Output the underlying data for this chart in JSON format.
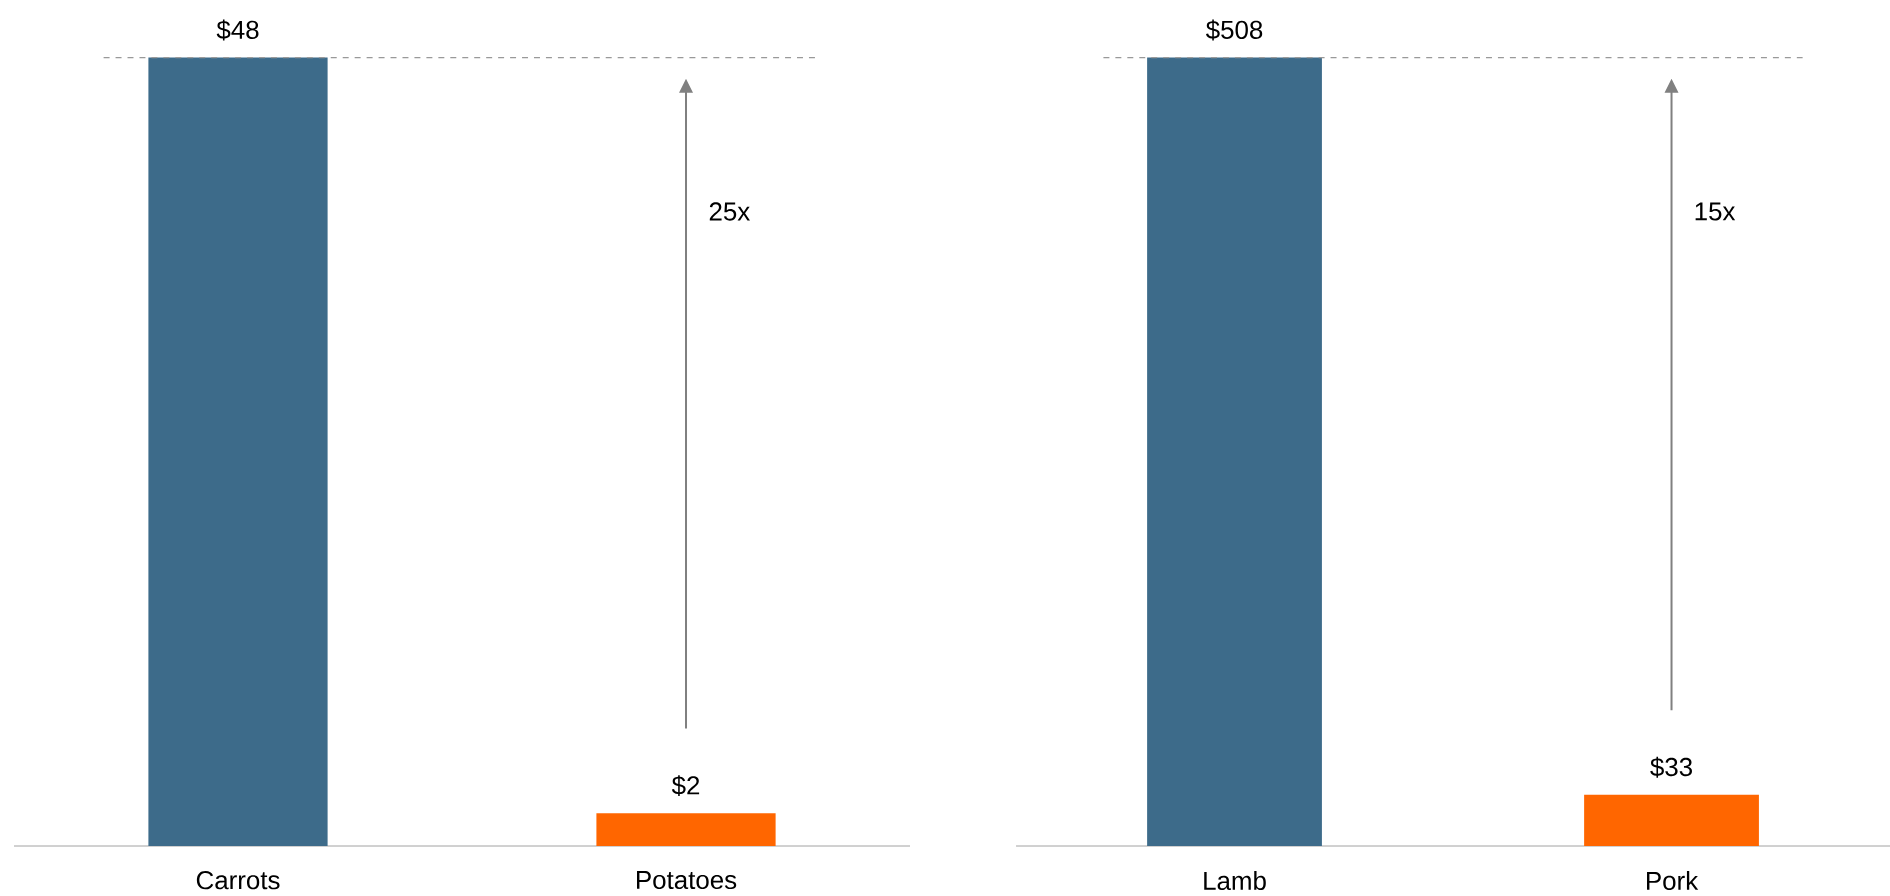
{
  "chart_data": [
    {
      "type": "bar",
      "categories": [
        "Carrots",
        "Potatoes"
      ],
      "values": [
        48,
        2
      ],
      "colors": [
        "#3d6b8a",
        "#ff6600"
      ],
      "value_labels": [
        "$48",
        "$2"
      ],
      "tick_labels": "x",
      "ref_lines": [
        {
          "axis": "y",
          "value": 48,
          "color": "#999999",
          "line_style": "dashed"
        }
      ],
      "annotations": [
        "25x"
      ]
    },
    {
      "type": "bar",
      "categories": [
        "Lamb",
        "Pork"
      ],
      "values": [
        508,
        33
      ],
      "colors": [
        "#3d6b8a",
        "#ff6600"
      ],
      "value_labels": [
        "$508",
        "$33"
      ],
      "tick_labels": "x",
      "ref_lines": [
        {
          "axis": "y",
          "value": 508,
          "color": "#999999",
          "line_style": "dashed"
        }
      ],
      "annotations": [
        "15x"
      ]
    }
  ]
}
